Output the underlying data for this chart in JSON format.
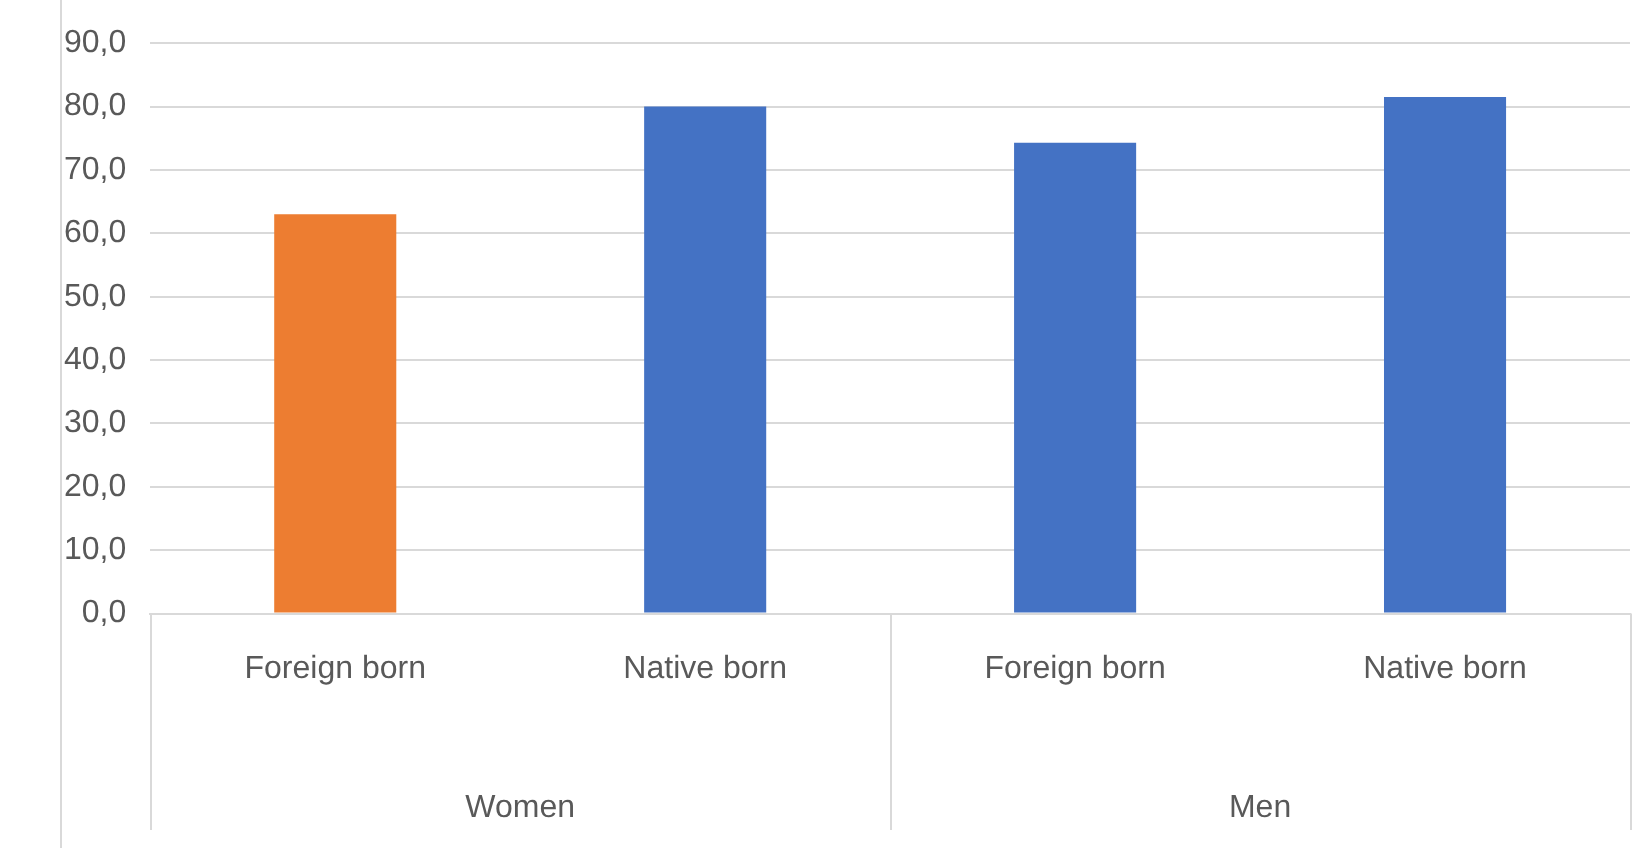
{
  "chart_data": {
    "type": "bar",
    "categories": [
      "Foreign born",
      "Native born",
      "Foreign born",
      "Native born"
    ],
    "values": [
      63.0,
      80.0,
      74.3,
      81.5
    ],
    "colors": [
      "#ed7d31",
      "#4472c4",
      "#4472c4",
      "#4472c4"
    ],
    "ylim": [
      0,
      90
    ],
    "yticks": [
      {
        "value": 0,
        "label": "0,0"
      },
      {
        "value": 10,
        "label": "10,0"
      },
      {
        "value": 20,
        "label": "20,0"
      },
      {
        "value": 30,
        "label": "30,0"
      },
      {
        "value": 40,
        "label": "40,0"
      },
      {
        "value": 50,
        "label": "50,0"
      },
      {
        "value": 60,
        "label": "60,0"
      },
      {
        "value": 70,
        "label": "70,0"
      },
      {
        "value": 80,
        "label": "80,0"
      },
      {
        "value": 90,
        "label": "90,0"
      }
    ],
    "grid": "y",
    "annotations": [
      "Women",
      "Men"
    ]
  }
}
